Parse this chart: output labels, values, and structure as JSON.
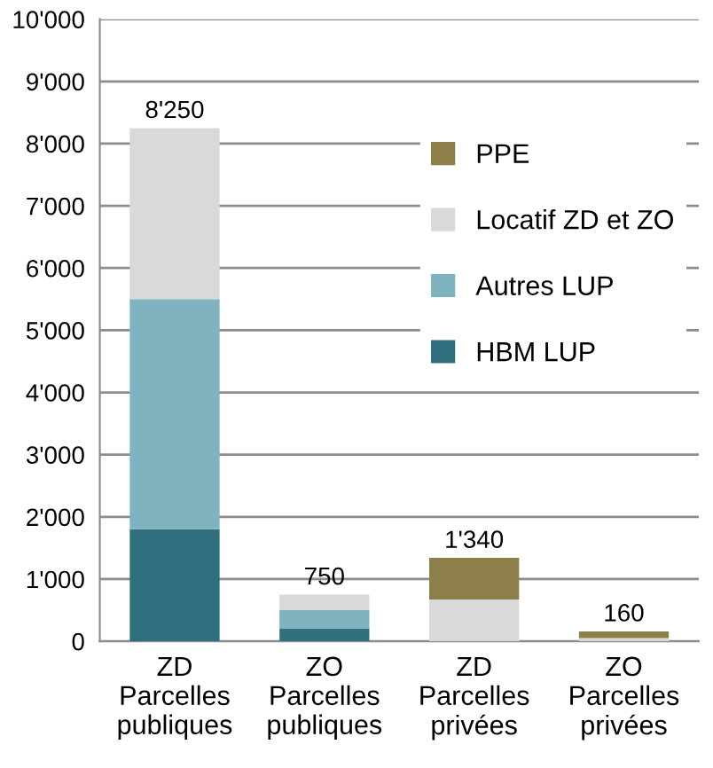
{
  "chart_data": {
    "type": "bar",
    "stacked": true,
    "categories": [
      "ZD\nParcelles\npubliques",
      "ZO\nParcelles\npubliques",
      "ZD\nParcelles\nprivées",
      "ZO\nParcelles\nprivées"
    ],
    "series": [
      {
        "name": "HBM LUP",
        "color": "#2f6f7e",
        "values": [
          1800,
          200,
          0,
          0
        ]
      },
      {
        "name": "Autres LUP",
        "color": "#7fb3c0",
        "values": [
          3700,
          300,
          0,
          0
        ]
      },
      {
        "name": "Locatif ZD et ZO",
        "color": "#d9d9d9",
        "values": [
          2750,
          250,
          670,
          50
        ]
      },
      {
        "name": "PPE",
        "color": "#8c7f4a",
        "values": [
          0,
          0,
          670,
          110
        ]
      }
    ],
    "totals": [
      "8'250",
      "750",
      "1'340",
      "160"
    ],
    "ylim": [
      0,
      10000
    ],
    "yticks": [
      0,
      {
        "value": 1000,
        "label": "1'000"
      },
      {
        "value": 2000,
        "label": "2'000"
      },
      {
        "value": 3000,
        "label": "3'000"
      },
      {
        "value": 4000,
        "label": "4'000"
      },
      {
        "value": 5000,
        "label": "5'000"
      },
      {
        "value": 6000,
        "label": "6'000"
      },
      {
        "value": 7000,
        "label": "7'000"
      },
      {
        "value": 8000,
        "label": "8'000"
      },
      {
        "value": 9000,
        "label": "9'000"
      },
      {
        "value": 10000,
        "label": "10'000"
      }
    ],
    "grid": "y",
    "legend": "top right"
  }
}
